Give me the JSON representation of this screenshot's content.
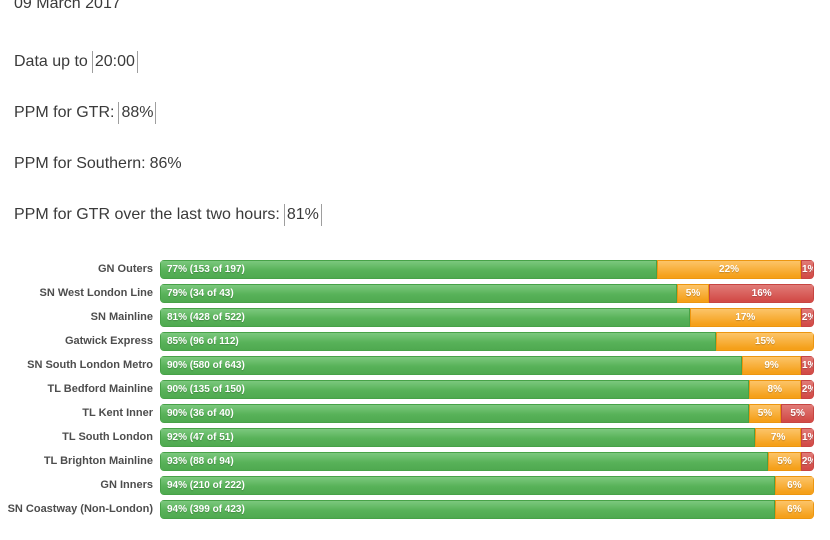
{
  "report": {
    "date": "09 March 2017",
    "data_up_to": {
      "label": "Data up to",
      "value": "20:00"
    },
    "ppm_gtr": {
      "label": "PPM for GTR:",
      "value": "88%"
    },
    "ppm_southern": {
      "label": "PPM for Southern:",
      "value": "86%"
    },
    "ppm_gtr_last_two_hours": {
      "label": "PPM for GTR over the last two hours:",
      "value": "81%"
    }
  },
  "chart_data": {
    "type": "bar",
    "orientation": "horizontal",
    "stacked": true,
    "xlim": [
      0,
      100
    ],
    "value_format": "percent",
    "grid": false,
    "legend": null,
    "segment_names": [
      "on_time",
      "late",
      "cancelled_or_very_late"
    ],
    "colors": {
      "on_time": "#5cb85c",
      "late": "#f6a21c",
      "cancelled_or_very_late": "#d9534f"
    },
    "rows": [
      {
        "category": "GN Outers",
        "green": 77,
        "green_label": "77% (153 of 197)",
        "orange": 22,
        "orange_label": "22%",
        "red": 1,
        "red_label": "1%"
      },
      {
        "category": "SN West London Line",
        "green": 79,
        "green_label": "79% (34 of 43)",
        "orange": 5,
        "orange_label": "5%",
        "red": 16,
        "red_label": "16%"
      },
      {
        "category": "SN Mainline",
        "green": 81,
        "green_label": "81% (428 of 522)",
        "orange": 17,
        "orange_label": "17%",
        "red": 2,
        "red_label": "2%"
      },
      {
        "category": "Gatwick Express",
        "green": 85,
        "green_label": "85% (96 of 112)",
        "orange": 15,
        "orange_label": "15%",
        "red": 0,
        "red_label": ""
      },
      {
        "category": "SN South London Metro",
        "green": 90,
        "green_label": "90% (580 of 643)",
        "orange": 9,
        "orange_label": "9%",
        "red": 1,
        "red_label": "1%"
      },
      {
        "category": "TL Bedford Mainline",
        "green": 90,
        "green_label": "90% (135 of 150)",
        "orange": 8,
        "orange_label": "8%",
        "red": 2,
        "red_label": "2%"
      },
      {
        "category": "TL Kent Inner",
        "green": 90,
        "green_label": "90% (36 of 40)",
        "orange": 5,
        "orange_label": "5%",
        "red": 5,
        "red_label": "5%"
      },
      {
        "category": "TL South London",
        "green": 92,
        "green_label": "92% (47 of 51)",
        "orange": 7,
        "orange_label": "7%",
        "red": 1,
        "red_label": "1%"
      },
      {
        "category": "TL Brighton Mainline",
        "green": 93,
        "green_label": "93% (88 of 94)",
        "orange": 5,
        "orange_label": "5%",
        "red": 2,
        "red_label": "2%"
      },
      {
        "category": "GN Inners",
        "green": 94,
        "green_label": "94% (210 of 222)",
        "orange": 6,
        "orange_label": "6%",
        "red": 0,
        "red_label": ""
      },
      {
        "category": "SN Coastway (Non-London)",
        "green": 94,
        "green_label": "94% (399 of 423)",
        "orange": 6,
        "orange_label": "6%",
        "red": 0,
        "red_label": ""
      }
    ]
  }
}
